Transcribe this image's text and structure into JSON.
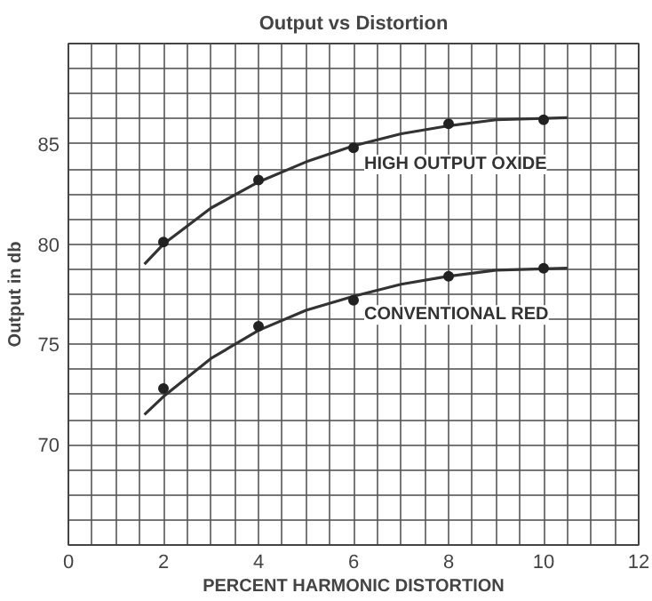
{
  "chart_data": {
    "type": "line",
    "title": "Output vs Distortion",
    "xlabel": "PERCENT HARMONIC DISTORTION",
    "ylabel": "Output in db",
    "xlim": [
      0,
      12
    ],
    "ylim": [
      65,
      90
    ],
    "xticks": [
      0,
      {
        "value": 0.5,
        "label": null
      },
      {
        "value": 1,
        "label": null
      },
      {
        "value": 1.5,
        "label": null
      },
      2,
      {
        "value": 2.5,
        "label": null
      },
      {
        "value": 3,
        "label": null
      },
      {
        "value": 3.5,
        "label": null
      },
      4,
      {
        "value": 4.5,
        "label": null
      },
      {
        "value": 5,
        "label": null
      },
      {
        "value": 5.5,
        "label": null
      },
      6,
      {
        "value": 6.5,
        "label": null
      },
      {
        "value": 7,
        "label": null
      },
      {
        "value": 7.5,
        "label": null
      },
      8,
      {
        "value": 8.5,
        "label": null
      },
      {
        "value": 9,
        "label": null
      },
      {
        "value": 9.5,
        "label": null
      },
      10,
      {
        "value": 10.5,
        "label": null
      },
      {
        "value": 11,
        "label": null
      },
      {
        "value": 11.5,
        "label": null
      },
      12
    ],
    "yticks": [
      {
        "value": 66.25,
        "label": null
      },
      {
        "value": 67.5,
        "label": null
      },
      {
        "value": 68.75,
        "label": null
      },
      70,
      {
        "value": 71.25,
        "label": null
      },
      {
        "value": 72.5,
        "label": null
      },
      {
        "value": 73.75,
        "label": null
      },
      75,
      {
        "value": 76.25,
        "label": null
      },
      {
        "value": 77.5,
        "label": null
      },
      {
        "value": 78.75,
        "label": null
      },
      80,
      {
        "value": 81.25,
        "label": null
      },
      {
        "value": 82.5,
        "label": null
      },
      {
        "value": 83.75,
        "label": null
      },
      85,
      {
        "value": 86.25,
        "label": null
      },
      {
        "value": 87.5,
        "label": null
      },
      {
        "value": 88.75,
        "label": null
      }
    ],
    "grid": true,
    "series": [
      {
        "name": "HIGH OUTPUT OXIDE",
        "color": "#333333",
        "marker": "none",
        "line_style": "solid",
        "x": [
          1.6,
          2,
          3,
          4,
          5,
          6,
          7,
          8,
          9,
          10.5
        ],
        "values": [
          79.0,
          80.0,
          81.8,
          83.1,
          84.1,
          84.9,
          85.5,
          85.9,
          86.2,
          86.3
        ]
      },
      {
        "type": "scatter",
        "color": "#222222",
        "marker": "circle",
        "x": [
          2,
          4,
          6,
          8,
          10
        ],
        "values": [
          80.1,
          83.2,
          84.8,
          86.0,
          86.2
        ]
      },
      {
        "name": "CONVENTIONAL RED",
        "color": "#333333",
        "marker": "none",
        "line_style": "solid",
        "x": [
          1.6,
          2,
          3,
          4,
          5,
          6,
          7,
          8,
          9,
          10.5
        ],
        "values": [
          71.5,
          72.4,
          74.3,
          75.7,
          76.7,
          77.4,
          78.0,
          78.4,
          78.7,
          78.8
        ]
      },
      {
        "type": "scatter",
        "color": "#222222",
        "marker": "circle",
        "x": [
          2,
          4,
          6,
          8,
          10
        ],
        "values": [
          72.8,
          75.9,
          77.2,
          78.4,
          78.8
        ]
      }
    ]
  }
}
